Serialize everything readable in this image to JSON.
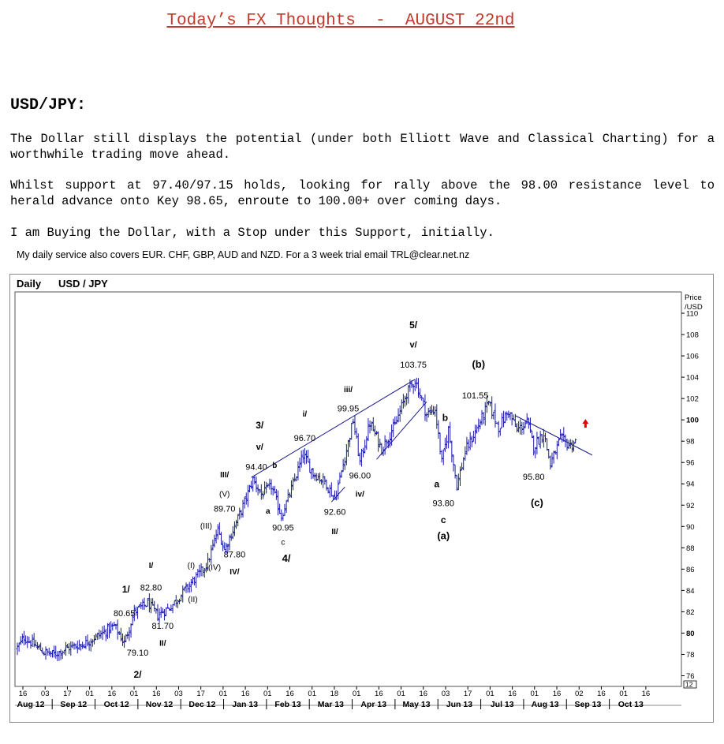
{
  "header": {
    "title": "Today’s FX Thoughts  -  AUGUST 22nd"
  },
  "article": {
    "heading": "USD/JPY:",
    "paragraphs": [
      "The Dollar still displays the potential (under both Elliott Wave and Classical Charting) for a worthwhile trading move ahead.",
      "Whilst support at 97.40/97.15 holds, looking for rally above the 98.00 resistance level to herald advance onto Key 98.65, enroute to 100.00+ over coming days.",
      "I am Buying the Dollar, with a Stop under this Support, initially."
    ],
    "note": "My daily service also covers EUR. CHF, GBP, AUD and NZD. For a 3 week trial email TRL@clear.net.nz"
  },
  "chart_data": {
    "type": "ohlc",
    "period_label": "Daily",
    "symbol": "USD / JPY",
    "price_axis_title": [
      "Price",
      "/USD"
    ],
    "ylim": [
      75,
      112
    ],
    "y_ticks": [
      76,
      78,
      80,
      82,
      84,
      86,
      88,
      90,
      92,
      94,
      96,
      98,
      100,
      102,
      104,
      106,
      108,
      110
    ],
    "y_ticks_bold": [
      80,
      100
    ],
    "y_corner_label": "12",
    "x_tick_days": [
      "16",
      "03",
      "17",
      "01",
      "16",
      "01",
      "16",
      "03",
      "17",
      "01",
      "16",
      "01",
      "16",
      "01",
      "18",
      "01",
      "16",
      "01",
      "16",
      "03",
      "17",
      "01",
      "16",
      "01",
      "16",
      "02",
      "16",
      "01",
      "16"
    ],
    "months": [
      "Aug 12",
      "Sep 12",
      "Oct 12",
      "Nov 12",
      "Dec 12",
      "Jan 13",
      "Feb 13",
      "Mar 13",
      "Apr 13",
      "May 13",
      "Jun 13",
      "Jul 13",
      "Aug 13",
      "Sep 13",
      "Oct 13"
    ],
    "pivots": [
      {
        "t": 0,
        "v": 78.6
      },
      {
        "t": 4,
        "v": 79.6
      },
      {
        "t": 10,
        "v": 78.9
      },
      {
        "t": 16,
        "v": 78.2
      },
      {
        "t": 22,
        "v": 78.0
      },
      {
        "t": 30,
        "v": 78.6
      },
      {
        "t": 40,
        "v": 79.0
      },
      {
        "t": 52,
        "v": 80.1
      },
      {
        "t": 58,
        "v": 80.65
      },
      {
        "t": 64,
        "v": 79.1
      },
      {
        "t": 70,
        "v": 82.0
      },
      {
        "t": 78,
        "v": 82.8
      },
      {
        "t": 84,
        "v": 81.7
      },
      {
        "t": 92,
        "v": 82.5
      },
      {
        "t": 100,
        "v": 84.0
      },
      {
        "t": 108,
        "v": 85.4
      },
      {
        "t": 114,
        "v": 86.6
      },
      {
        "t": 120,
        "v": 89.7
      },
      {
        "t": 124,
        "v": 87.8
      },
      {
        "t": 134,
        "v": 91.5
      },
      {
        "t": 141,
        "v": 94.4
      },
      {
        "t": 146,
        "v": 93.0
      },
      {
        "t": 152,
        "v": 93.8
      },
      {
        "t": 158,
        "v": 90.95
      },
      {
        "t": 164,
        "v": 93.5
      },
      {
        "t": 171,
        "v": 96.7
      },
      {
        "t": 177,
        "v": 95.0
      },
      {
        "t": 184,
        "v": 94.2
      },
      {
        "t": 190,
        "v": 92.6
      },
      {
        "t": 196,
        "v": 96.5
      },
      {
        "t": 201,
        "v": 99.95
      },
      {
        "t": 205,
        "v": 96.0
      },
      {
        "t": 211,
        "v": 99.7
      },
      {
        "t": 218,
        "v": 97.3
      },
      {
        "t": 226,
        "v": 99.5
      },
      {
        "t": 233,
        "v": 102.5
      },
      {
        "t": 238,
        "v": 103.75
      },
      {
        "t": 245,
        "v": 100.5
      },
      {
        "t": 250,
        "v": 101.0
      },
      {
        "t": 254,
        "v": 96.0
      },
      {
        "t": 258,
        "v": 99.1
      },
      {
        "t": 263,
        "v": 93.8
      },
      {
        "t": 268,
        "v": 97.0
      },
      {
        "t": 276,
        "v": 99.5
      },
      {
        "t": 282,
        "v": 101.55
      },
      {
        "t": 288,
        "v": 99.3
      },
      {
        "t": 294,
        "v": 100.8
      },
      {
        "t": 299,
        "v": 99.0
      },
      {
        "t": 305,
        "v": 99.8
      },
      {
        "t": 309,
        "v": 97.5
      },
      {
        "t": 315,
        "v": 98.8
      },
      {
        "t": 319,
        "v": 95.8
      },
      {
        "t": 325,
        "v": 98.2
      },
      {
        "t": 331,
        "v": 97.6
      },
      {
        "t": 334,
        "v": 98.0
      }
    ],
    "trendlines": [
      {
        "from": {
          "t": 140,
          "v": 94.6
        },
        "to": {
          "t": 238,
          "v": 103.8
        }
      },
      {
        "from": {
          "t": 188,
          "v": 92.3
        },
        "to": {
          "t": 196,
          "v": 93.7
        }
      },
      {
        "from": {
          "t": 215,
          "v": 96.3
        },
        "to": {
          "t": 245,
          "v": 101.7
        }
      },
      {
        "from": {
          "t": 298,
          "v": 100.4
        },
        "to": {
          "t": 344,
          "v": 96.7
        }
      }
    ],
    "signal": {
      "type": "buy",
      "t": 340,
      "v": 98.6
    },
    "annotations": [
      {
        "text": "5/",
        "t": 237,
        "v": 108.6,
        "bold": true,
        "size": 12
      },
      {
        "text": "v/",
        "t": 237,
        "v": 106.8,
        "bold": true,
        "size": 11
      },
      {
        "text": "103.75",
        "t": 237,
        "v": 104.9,
        "bold": false,
        "size": 11
      },
      {
        "text": "(b)",
        "t": 276,
        "v": 104.9,
        "bold": true,
        "size": 13
      },
      {
        "text": "101.55",
        "t": 274,
        "v": 102.0,
        "bold": false,
        "size": 11
      },
      {
        "text": "iii/",
        "t": 198,
        "v": 102.6,
        "bold": true,
        "size": 10
      },
      {
        "text": "99.95",
        "t": 198,
        "v": 100.8,
        "bold": false,
        "size": 11
      },
      {
        "text": "b",
        "t": 256,
        "v": 99.9,
        "bold": true,
        "size": 12
      },
      {
        "text": "i/",
        "t": 172,
        "v": 100.3,
        "bold": true,
        "size": 10
      },
      {
        "text": "96.70",
        "t": 172,
        "v": 98.0,
        "bold": false,
        "size": 11
      },
      {
        "text": "3/",
        "t": 145,
        "v": 99.2,
        "bold": true,
        "size": 12
      },
      {
        "text": "v/",
        "t": 145,
        "v": 97.2,
        "bold": true,
        "size": 11
      },
      {
        "text": "94.40",
        "t": 143,
        "v": 95.3,
        "bold": false,
        "size": 11
      },
      {
        "text": "b",
        "t": 154,
        "v": 95.5,
        "bold": true,
        "size": 10
      },
      {
        "text": "96.00",
        "t": 205,
        "v": 94.5,
        "bold": false,
        "size": 11
      },
      {
        "text": "iv/",
        "t": 205,
        "v": 92.8,
        "bold": true,
        "size": 10
      },
      {
        "text": "a",
        "t": 251,
        "v": 93.7,
        "bold": true,
        "size": 12
      },
      {
        "text": "93.80",
        "t": 255,
        "v": 91.9,
        "bold": false,
        "size": 11
      },
      {
        "text": "c",
        "t": 255,
        "v": 90.3,
        "bold": true,
        "size": 12
      },
      {
        "text": "(a)",
        "t": 255,
        "v": 88.8,
        "bold": true,
        "size": 13
      },
      {
        "text": "95.80",
        "t": 309,
        "v": 94.4,
        "bold": false,
        "size": 11
      },
      {
        "text": "(c)",
        "t": 311,
        "v": 91.9,
        "bold": true,
        "size": 13
      },
      {
        "text": "III/",
        "t": 124,
        "v": 94.6,
        "bold": true,
        "size": 10
      },
      {
        "text": "(V)",
        "t": 124,
        "v": 92.8,
        "bold": false,
        "size": 10
      },
      {
        "text": "89.70",
        "t": 124,
        "v": 91.4,
        "bold": false,
        "size": 11
      },
      {
        "text": "a",
        "t": 150,
        "v": 91.2,
        "bold": true,
        "size": 10
      },
      {
        "text": "92.60",
        "t": 190,
        "v": 91.1,
        "bold": false,
        "size": 11
      },
      {
        "text": "II/",
        "t": 190,
        "v": 89.3,
        "bold": true,
        "size": 10
      },
      {
        "text": "90.95",
        "t": 159,
        "v": 89.6,
        "bold": false,
        "size": 11
      },
      {
        "text": "c",
        "t": 159,
        "v": 88.3,
        "bold": false,
        "size": 10
      },
      {
        "text": "4/",
        "t": 161,
        "v": 86.7,
        "bold": true,
        "size": 13
      },
      {
        "text": "(III)",
        "t": 113,
        "v": 89.8,
        "bold": false,
        "size": 10
      },
      {
        "text": "87.80",
        "t": 130,
        "v": 87.1,
        "bold": false,
        "size": 11
      },
      {
        "text": "IV/",
        "t": 130,
        "v": 85.5,
        "bold": true,
        "size": 10
      },
      {
        "text": "(IV)",
        "t": 118,
        "v": 85.9,
        "bold": false,
        "size": 10
      },
      {
        "text": "(I)",
        "t": 104,
        "v": 86.1,
        "bold": false,
        "size": 10
      },
      {
        "text": "(II)",
        "t": 105,
        "v": 82.9,
        "bold": false,
        "size": 10
      },
      {
        "text": "I/",
        "t": 80,
        "v": 86.1,
        "bold": true,
        "size": 10
      },
      {
        "text": "82.80",
        "t": 80,
        "v": 84.0,
        "bold": false,
        "size": 11
      },
      {
        "text": "1/",
        "t": 65,
        "v": 83.8,
        "bold": true,
        "size": 12
      },
      {
        "text": "80.65",
        "t": 64,
        "v": 81.6,
        "bold": false,
        "size": 11
      },
      {
        "text": "81.70",
        "t": 87,
        "v": 80.4,
        "bold": false,
        "size": 11
      },
      {
        "text": "II/",
        "t": 87,
        "v": 78.8,
        "bold": true,
        "size": 10
      },
      {
        "text": "79.10",
        "t": 72,
        "v": 77.9,
        "bold": false,
        "size": 11
      },
      {
        "text": "2/",
        "t": 72,
        "v": 75.8,
        "bold": true,
        "size": 12
      }
    ]
  }
}
